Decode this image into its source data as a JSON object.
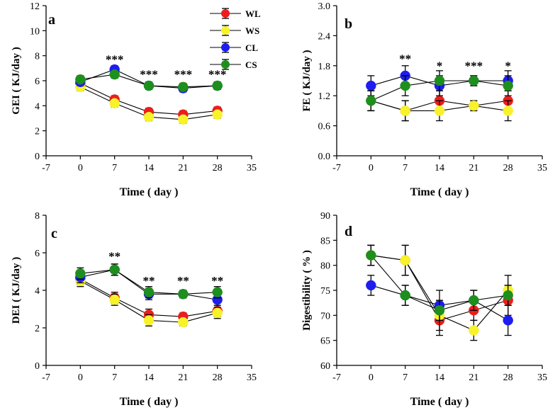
{
  "legend": [
    {
      "name": "WL",
      "color": "#ee1c1c"
    },
    {
      "name": "WS",
      "color": "#f7f22a"
    },
    {
      "name": "CL",
      "color": "#1d1df0"
    },
    {
      "name": "CS",
      "color": "#1d8f1d"
    }
  ],
  "chart_data": [
    {
      "type": "line",
      "panel": "a",
      "ylabel": "GEI ( KJ/day )",
      "xlabel": "Time ( day )",
      "xlim": [
        -7,
        35
      ],
      "xticks": [
        -7,
        0,
        7,
        14,
        21,
        28,
        35
      ],
      "ylim": [
        0,
        12
      ],
      "yticks": [
        0,
        2,
        4,
        6,
        8,
        10,
        12
      ],
      "x": [
        0,
        7,
        14,
        21,
        28
      ],
      "series": [
        {
          "name": "WL",
          "values": [
            5.8,
            4.5,
            3.5,
            3.3,
            3.6
          ],
          "errors": [
            0.3,
            0.3,
            0.3,
            0.3,
            0.3
          ]
        },
        {
          "name": "WS",
          "values": [
            5.5,
            4.2,
            3.1,
            2.9,
            3.3
          ],
          "errors": [
            0.3,
            0.3,
            0.3,
            0.3,
            0.3
          ]
        },
        {
          "name": "CL",
          "values": [
            5.9,
            6.9,
            5.6,
            5.4,
            5.6
          ],
          "errors": [
            0.3,
            0.3,
            0.3,
            0.3,
            0.3
          ]
        },
        {
          "name": "CS",
          "values": [
            6.1,
            6.5,
            5.6,
            5.5,
            5.6
          ],
          "errors": [
            0.3,
            0.3,
            0.3,
            0.3,
            0.3
          ]
        }
      ],
      "annotations": [
        {
          "x": 7,
          "y": 7.4,
          "text": "***"
        },
        {
          "x": 14,
          "y": 6.2,
          "text": "***"
        },
        {
          "x": 21,
          "y": 6.2,
          "text": "***"
        },
        {
          "x": 28,
          "y": 6.2,
          "text": "***"
        }
      ]
    },
    {
      "type": "line",
      "panel": "b",
      "ylabel": "FE ( KJ/day )",
      "xlabel": "Time ( day )",
      "xlim": [
        -7,
        35
      ],
      "xticks": [
        -7,
        0,
        7,
        14,
        21,
        28,
        35
      ],
      "ylim": [
        0,
        3
      ],
      "yticks": [
        0.0,
        0.6,
        1.2,
        1.8,
        2.4,
        3.0
      ],
      "ytick_labels": [
        "0.0",
        "0.6",
        "1.2",
        "1.8",
        "2.4",
        "3.0"
      ],
      "x": [
        0,
        7,
        14,
        21,
        28
      ],
      "series": [
        {
          "name": "WL",
          "values": [
            1.1,
            0.9,
            1.1,
            1.0,
            1.1
          ],
          "errors": [
            0.2,
            0.2,
            0.2,
            0.1,
            0.2
          ]
        },
        {
          "name": "WS",
          "values": [
            1.1,
            0.9,
            0.9,
            1.0,
            0.9
          ],
          "errors": [
            0.2,
            0.2,
            0.2,
            0.1,
            0.2
          ]
        },
        {
          "name": "CL",
          "values": [
            1.4,
            1.6,
            1.4,
            1.5,
            1.5
          ],
          "errors": [
            0.2,
            0.2,
            0.2,
            0.1,
            0.2
          ]
        },
        {
          "name": "CS",
          "values": [
            1.1,
            1.4,
            1.5,
            1.5,
            1.4
          ],
          "errors": [
            0.2,
            0.2,
            0.2,
            0.1,
            0.2
          ]
        }
      ],
      "annotations": [
        {
          "x": 7,
          "y": 1.86,
          "text": "**"
        },
        {
          "x": 14,
          "y": 1.72,
          "text": "*"
        },
        {
          "x": 21,
          "y": 1.72,
          "text": "***"
        },
        {
          "x": 28,
          "y": 1.72,
          "text": "*"
        }
      ]
    },
    {
      "type": "line",
      "panel": "c",
      "ylabel": "DEI ( KJ/day )",
      "xlabel": "Time ( day )",
      "xlim": [
        -7,
        35
      ],
      "xticks": [
        -7,
        0,
        7,
        14,
        21,
        28,
        35
      ],
      "ylim": [
        0,
        8
      ],
      "yticks": [
        0,
        2,
        4,
        6,
        8
      ],
      "x": [
        0,
        7,
        14,
        21,
        28
      ],
      "series": [
        {
          "name": "WL",
          "values": [
            4.6,
            3.6,
            2.7,
            2.6,
            2.9
          ],
          "errors": [
            0.3,
            0.3,
            0.3,
            0.2,
            0.3
          ]
        },
        {
          "name": "WS",
          "values": [
            4.5,
            3.5,
            2.4,
            2.3,
            2.8
          ],
          "errors": [
            0.3,
            0.3,
            0.3,
            0.2,
            0.3
          ]
        },
        {
          "name": "CL",
          "values": [
            4.7,
            5.1,
            3.8,
            3.8,
            3.5
          ],
          "errors": [
            0.3,
            0.3,
            0.3,
            0.2,
            0.3
          ]
        },
        {
          "name": "CS",
          "values": [
            4.9,
            5.1,
            3.9,
            3.8,
            3.9
          ],
          "errors": [
            0.3,
            0.3,
            0.3,
            0.2,
            0.3
          ]
        }
      ],
      "annotations": [
        {
          "x": 7,
          "y": 5.6,
          "text": "**"
        },
        {
          "x": 14,
          "y": 4.3,
          "text": "**"
        },
        {
          "x": 21,
          "y": 4.3,
          "text": "**"
        },
        {
          "x": 28,
          "y": 4.3,
          "text": "**"
        }
      ]
    },
    {
      "type": "line",
      "panel": "d",
      "ylabel": "Digestibility ( % )",
      "xlabel": "Time ( day )",
      "xlim": [
        -7,
        35
      ],
      "xticks": [
        -7,
        0,
        7,
        14,
        21,
        28,
        35
      ],
      "ylim": [
        60,
        90
      ],
      "yticks": [
        60,
        65,
        70,
        75,
        80,
        85,
        90
      ],
      "x": [
        0,
        7,
        14,
        21,
        28
      ],
      "series": [
        {
          "name": "WL",
          "values": [
            82,
            81,
            69,
            71,
            73
          ],
          "errors": [
            2,
            3,
            3,
            2,
            3
          ]
        },
        {
          "name": "WS",
          "values": [
            82,
            81,
            70,
            67,
            75
          ],
          "errors": [
            2,
            3,
            3,
            2,
            3
          ]
        },
        {
          "name": "CL",
          "values": [
            76,
            74,
            72,
            73,
            69
          ],
          "errors": [
            2,
            2,
            3,
            2,
            3
          ]
        },
        {
          "name": "CS",
          "values": [
            82,
            74,
            71,
            73,
            74
          ],
          "errors": [
            2,
            2,
            2,
            2,
            2
          ]
        }
      ],
      "annotations": []
    }
  ]
}
